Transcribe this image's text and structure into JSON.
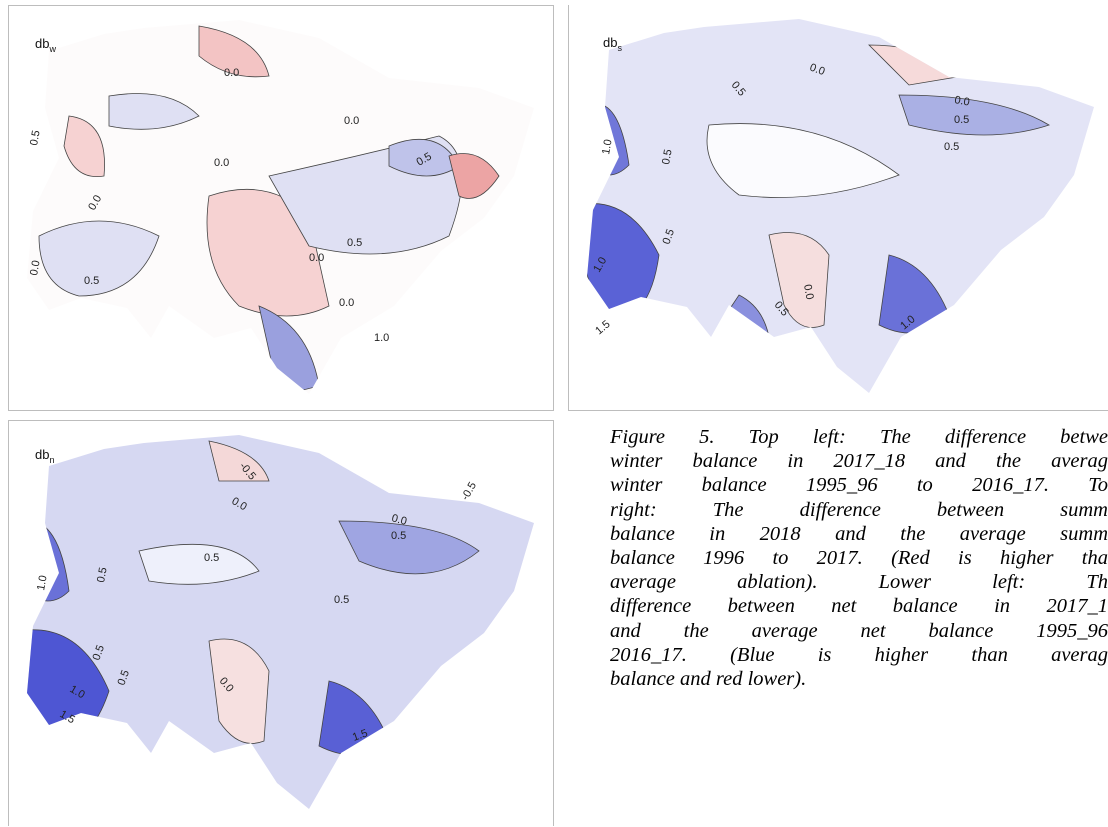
{
  "panels": [
    {
      "label": {
        "text": "db",
        "subscript": "w"
      },
      "contour_labels": [
        "0.0",
        "0.0",
        "0.5",
        "0.0",
        "0.0",
        "0.5",
        "0.0",
        "0.5",
        "0.0",
        "0.5",
        "0.0",
        "1.0"
      ]
    },
    {
      "label": {
        "text": "db",
        "subscript": "s"
      },
      "contour_labels": [
        "0.0",
        "0.5",
        "0.0",
        "0.5",
        "0.5",
        "1.0",
        "0.5",
        "1.0",
        "0.0",
        "0.5",
        "0.5",
        "1.0",
        "1.5"
      ]
    },
    {
      "label": {
        "text": "db",
        "subscript": "n"
      },
      "contour_labels": [
        "-0.5",
        "0.0",
        "0.0",
        "0.5",
        "-0.5",
        "0.5",
        "1.0",
        "0.5",
        "0.5",
        "1.0",
        "1.5",
        "0.5",
        "0.0",
        "0.5",
        "1.5"
      ]
    }
  ],
  "caption": {
    "lines": [
      "Figure 5.  Top left: The difference betwe",
      "winter balance in 2017_18 and the averag",
      "winter balance 1995_96 to 2016_17.  To",
      "right:  The  difference  between  summ",
      "balance in 2018 and the average summ",
      "balance 1996 to 2017.  (Red is higher tha",
      "average  ablation).    Lower  left:  Th",
      "difference between net balance in 2017_1",
      "and the average net balance 1995_96",
      "2016_17. (Blue is higher than averag",
      "balance and red lower)."
    ]
  }
}
